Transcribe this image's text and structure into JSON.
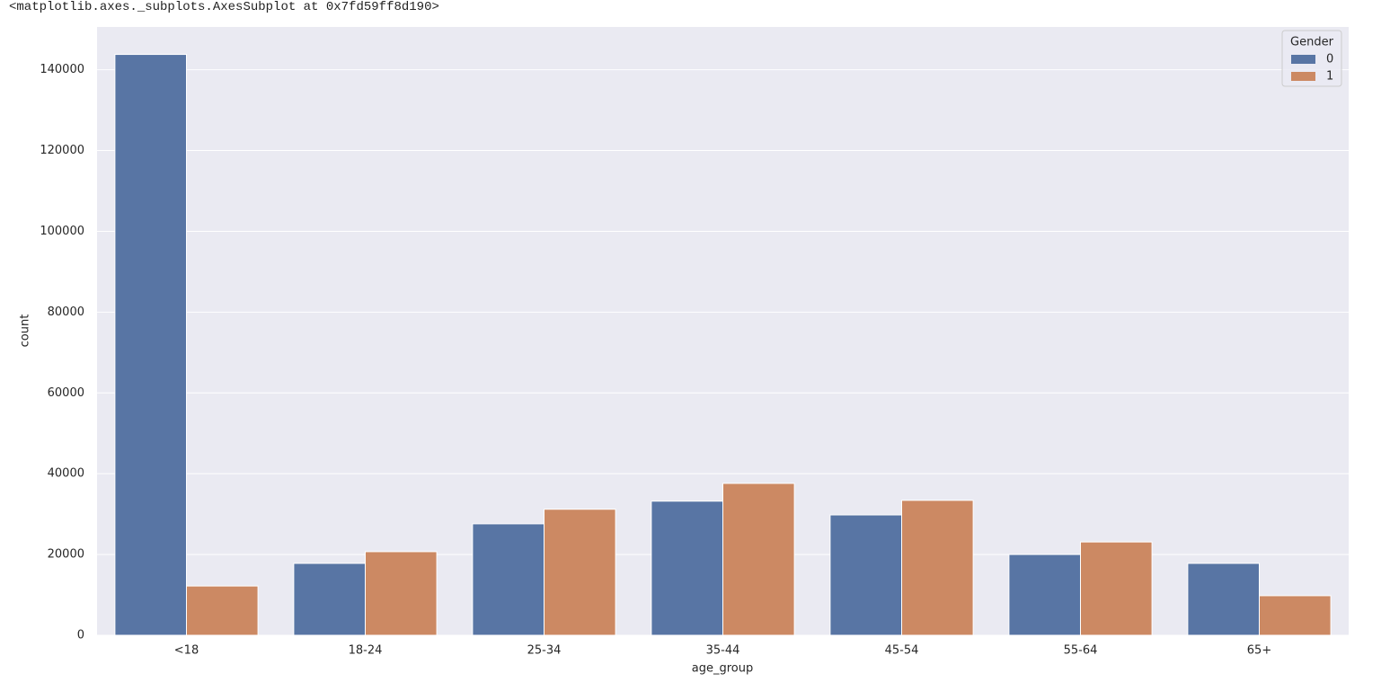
{
  "header_text": "<matplotlib.axes._subplots.AxesSubplot at 0x7fd59ff8d190>",
  "chart_data": {
    "type": "bar",
    "x_label": "age_group",
    "y_label": "count",
    "categories": [
      "<18",
      "18-24",
      "25-34",
      "35-44",
      "45-54",
      "55-64",
      "65+"
    ],
    "series": [
      {
        "name": "0",
        "color": "#5875a4",
        "values": [
          143800,
          17800,
          27600,
          33200,
          29800,
          20000,
          17800
        ]
      },
      {
        "name": "1",
        "color": "#cc8963",
        "values": [
          12200,
          20700,
          31200,
          37600,
          33400,
          23100,
          9800
        ]
      }
    ],
    "legend_title": "Gender",
    "legend": "upper right",
    "ylim": [
      0,
      150600
    ],
    "yticks": [
      0,
      20000,
      40000,
      60000,
      80000,
      100000,
      120000,
      140000
    ],
    "grid": true
  }
}
